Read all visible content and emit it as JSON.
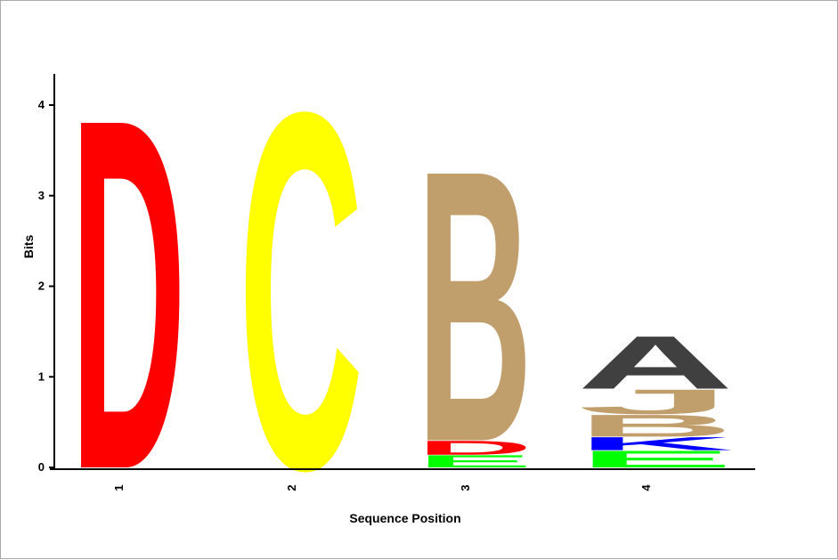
{
  "chart_data": {
    "type": "sequence-logo",
    "xlabel": "Sequence Position",
    "ylabel": "Bits",
    "ylim": [
      0,
      4
    ],
    "yticks": [
      "0",
      "1",
      "2",
      "3",
      "4"
    ],
    "positions": [
      {
        "label": "1",
        "letters": [
          {
            "char": "D",
            "bits": 3.98,
            "color": "#ff0000"
          }
        ]
      },
      {
        "label": "2",
        "letters": [
          {
            "char": "C",
            "bits": 4.05,
            "color": "#ffff00"
          }
        ]
      },
      {
        "label": "3",
        "letters": [
          {
            "char": "E",
            "bits": 0.14,
            "color": "#00ff00"
          },
          {
            "char": "D",
            "bits": 0.16,
            "color": "#ff0000"
          },
          {
            "char": "B",
            "bits": 3.08,
            "color": "#c19f6c"
          }
        ]
      },
      {
        "label": "4",
        "letters": [
          {
            "char": "E",
            "bits": 0.19,
            "color": "#00ff00"
          },
          {
            "char": "K",
            "bits": 0.15,
            "color": "#0000ff"
          },
          {
            "char": "B",
            "bits": 0.25,
            "color": "#c19f6c"
          },
          {
            "char": "J",
            "bits": 0.28,
            "color": "#c19f6c"
          },
          {
            "char": "A",
            "bits": 0.6,
            "color": "#404040"
          }
        ]
      }
    ]
  }
}
